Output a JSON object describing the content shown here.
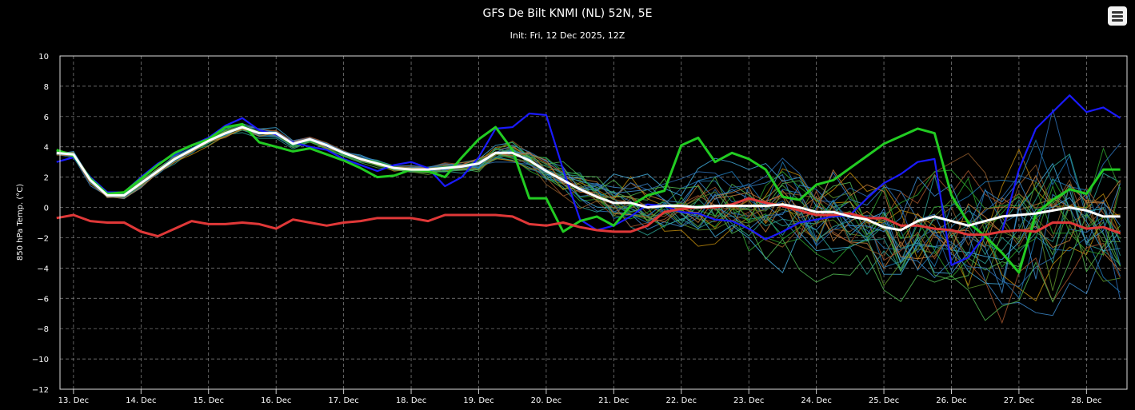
{
  "header": {
    "title": "GFS De Bilt KNMI (NL) 52N, 5E",
    "subtitle": "Init: Fri, 12 Dec 2025, 12Z",
    "menu_icon": "hamburger-menu-icon"
  },
  "chart_data": {
    "type": "line",
    "title": "GFS De Bilt KNMI (NL) 52N, 5E",
    "subtitle": "Init: Fri, 12 Dec 2025, 12Z",
    "ylabel": "850 hPa Temp. (°C)",
    "xlabel": "",
    "ylim": [
      -12,
      10
    ],
    "yticks": [
      10,
      8,
      6,
      4,
      2,
      0,
      -2,
      -4,
      -6,
      -8,
      -10,
      -12
    ],
    "ytick_labels": [
      "10",
      "8",
      "6",
      "4",
      "2",
      "0",
      "−2",
      "−4",
      "−6",
      "−8",
      "−10",
      "−12"
    ],
    "xlim": [
      12.8,
      28.6
    ],
    "xticks": [
      13,
      14,
      15,
      16,
      17,
      18,
      19,
      20,
      21,
      22,
      23,
      24,
      25,
      26,
      27,
      28
    ],
    "xtick_labels": [
      "13. Dec",
      "14. Dec",
      "15. Dec",
      "16. Dec",
      "17. Dec",
      "18. Dec",
      "19. Dec",
      "20. Dec",
      "21. Dec",
      "22. Dec",
      "23. Dec",
      "24. Dec",
      "25. Dec",
      "26. Dec",
      "27. Dec",
      "28. Dec"
    ],
    "grid": true,
    "x": [
      12.75,
      13.0,
      13.25,
      13.5,
      13.75,
      14.0,
      14.25,
      14.5,
      14.75,
      15.0,
      15.25,
      15.5,
      15.75,
      16.0,
      16.25,
      16.5,
      16.75,
      17.0,
      17.25,
      17.5,
      17.75,
      18.0,
      18.25,
      18.5,
      18.75,
      19.0,
      19.25,
      19.5,
      19.75,
      20.0,
      20.25,
      20.5,
      20.75,
      21.0,
      21.25,
      21.5,
      21.75,
      22.0,
      22.25,
      22.5,
      22.75,
      23.0,
      23.25,
      23.5,
      23.75,
      24.0,
      24.25,
      24.5,
      24.75,
      25.0,
      25.25,
      25.5,
      25.75,
      26.0,
      26.25,
      26.5,
      26.75,
      27.0,
      27.25,
      27.5,
      27.75,
      28.0,
      28.25,
      28.5
    ],
    "series": [
      {
        "color": "#ffffff",
        "width": 3,
        "values": [
          3.6,
          3.5,
          1.8,
          0.8,
          0.8,
          1.6,
          2.4,
          3.2,
          3.8,
          4.4,
          4.9,
          5.3,
          4.9,
          4.9,
          4.2,
          4.5,
          4.1,
          3.6,
          3.2,
          2.9,
          2.6,
          2.5,
          2.5,
          2.6,
          2.7,
          2.9,
          3.6,
          3.6,
          3.1,
          2.4,
          1.8,
          1.2,
          0.7,
          0.3,
          0.3,
          0.0,
          0.1,
          0.1,
          0.0,
          0.1,
          0.1,
          0.1,
          0.1,
          0.2,
          0.0,
          -0.3,
          -0.3,
          -0.6,
          -0.8,
          -1.3,
          -1.5,
          -0.9,
          -0.6,
          -0.9,
          -1.2,
          -0.9,
          -0.6,
          -0.5,
          -0.4,
          -0.2,
          0.0,
          -0.2,
          -0.6,
          -0.6
        ]
      },
      {
        "color": "#e03838",
        "width": 3,
        "values": [
          -0.7,
          -0.5,
          -0.9,
          -1.0,
          -1.0,
          -1.6,
          -1.9,
          -1.4,
          -0.9,
          -1.1,
          -1.1,
          -1.0,
          -1.1,
          -1.4,
          -0.8,
          -1.0,
          -1.2,
          -1.0,
          -0.9,
          -0.7,
          -0.7,
          -0.7,
          -0.9,
          -0.5,
          -0.5,
          -0.5,
          -0.5,
          -0.6,
          -1.1,
          -1.2,
          -1.0,
          -1.3,
          -1.5,
          -1.6,
          -1.6,
          -1.2,
          -0.3,
          -0.1,
          0.0,
          0.0,
          0.2,
          0.6,
          0.3,
          0.1,
          -0.2,
          -0.5,
          -0.5,
          -0.4,
          -0.7,
          -0.7,
          -1.2,
          -1.2,
          -1.4,
          -1.5,
          -1.8,
          -1.8,
          -1.6,
          -1.5,
          -1.6,
          -1.0,
          -1.0,
          -1.4,
          -1.3,
          -1.7
        ]
      },
      {
        "color": "#22cc22",
        "width": 3,
        "values": [
          3.8,
          3.4,
          1.9,
          0.9,
          1.0,
          1.9,
          2.8,
          3.6,
          4.1,
          4.5,
          5.3,
          5.5,
          4.3,
          4.0,
          3.7,
          3.9,
          3.5,
          3.1,
          2.6,
          2.0,
          2.1,
          2.5,
          2.4,
          2.0,
          3.3,
          4.5,
          5.3,
          3.8,
          0.6,
          0.6,
          -1.6,
          -0.9,
          -0.6,
          -1.2,
          0.1,
          0.8,
          1.1,
          4.1,
          4.6,
          3.0,
          3.6,
          3.2,
          2.5,
          0.7,
          0.5,
          1.5,
          1.8,
          2.6,
          3.4,
          4.2,
          4.7,
          5.2,
          4.9,
          0.8,
          -1.0,
          -1.9,
          -3.0,
          -4.3,
          -0.4,
          0.5,
          1.2,
          0.9,
          2.5,
          2.5
        ]
      },
      {
        "color": "#1a1aff",
        "width": 2.2,
        "values": [
          3.0,
          3.3,
          2.0,
          1.0,
          1.0,
          2.0,
          2.9,
          3.5,
          4.1,
          4.6,
          5.4,
          5.9,
          5.1,
          4.8,
          4.3,
          4.0,
          3.8,
          3.2,
          2.8,
          2.4,
          2.8,
          3.0,
          2.6,
          1.4,
          2.0,
          3.3,
          5.2,
          5.3,
          6.2,
          6.1,
          2.5,
          -0.8,
          -1.5,
          -1.2,
          -0.6,
          0.2,
          0.1,
          -0.3,
          -0.4,
          -0.8,
          -0.9,
          -1.4,
          -2.1,
          -1.6,
          -1.0,
          -0.8,
          -0.6,
          -0.5,
          0.6,
          1.6,
          2.2,
          3.0,
          3.2,
          -3.8,
          -3.3,
          -1.8,
          -1.6,
          2.5,
          5.2,
          6.3,
          7.4,
          6.3,
          6.6,
          5.9
        ]
      }
    ],
    "ensemble_count": 30
  }
}
